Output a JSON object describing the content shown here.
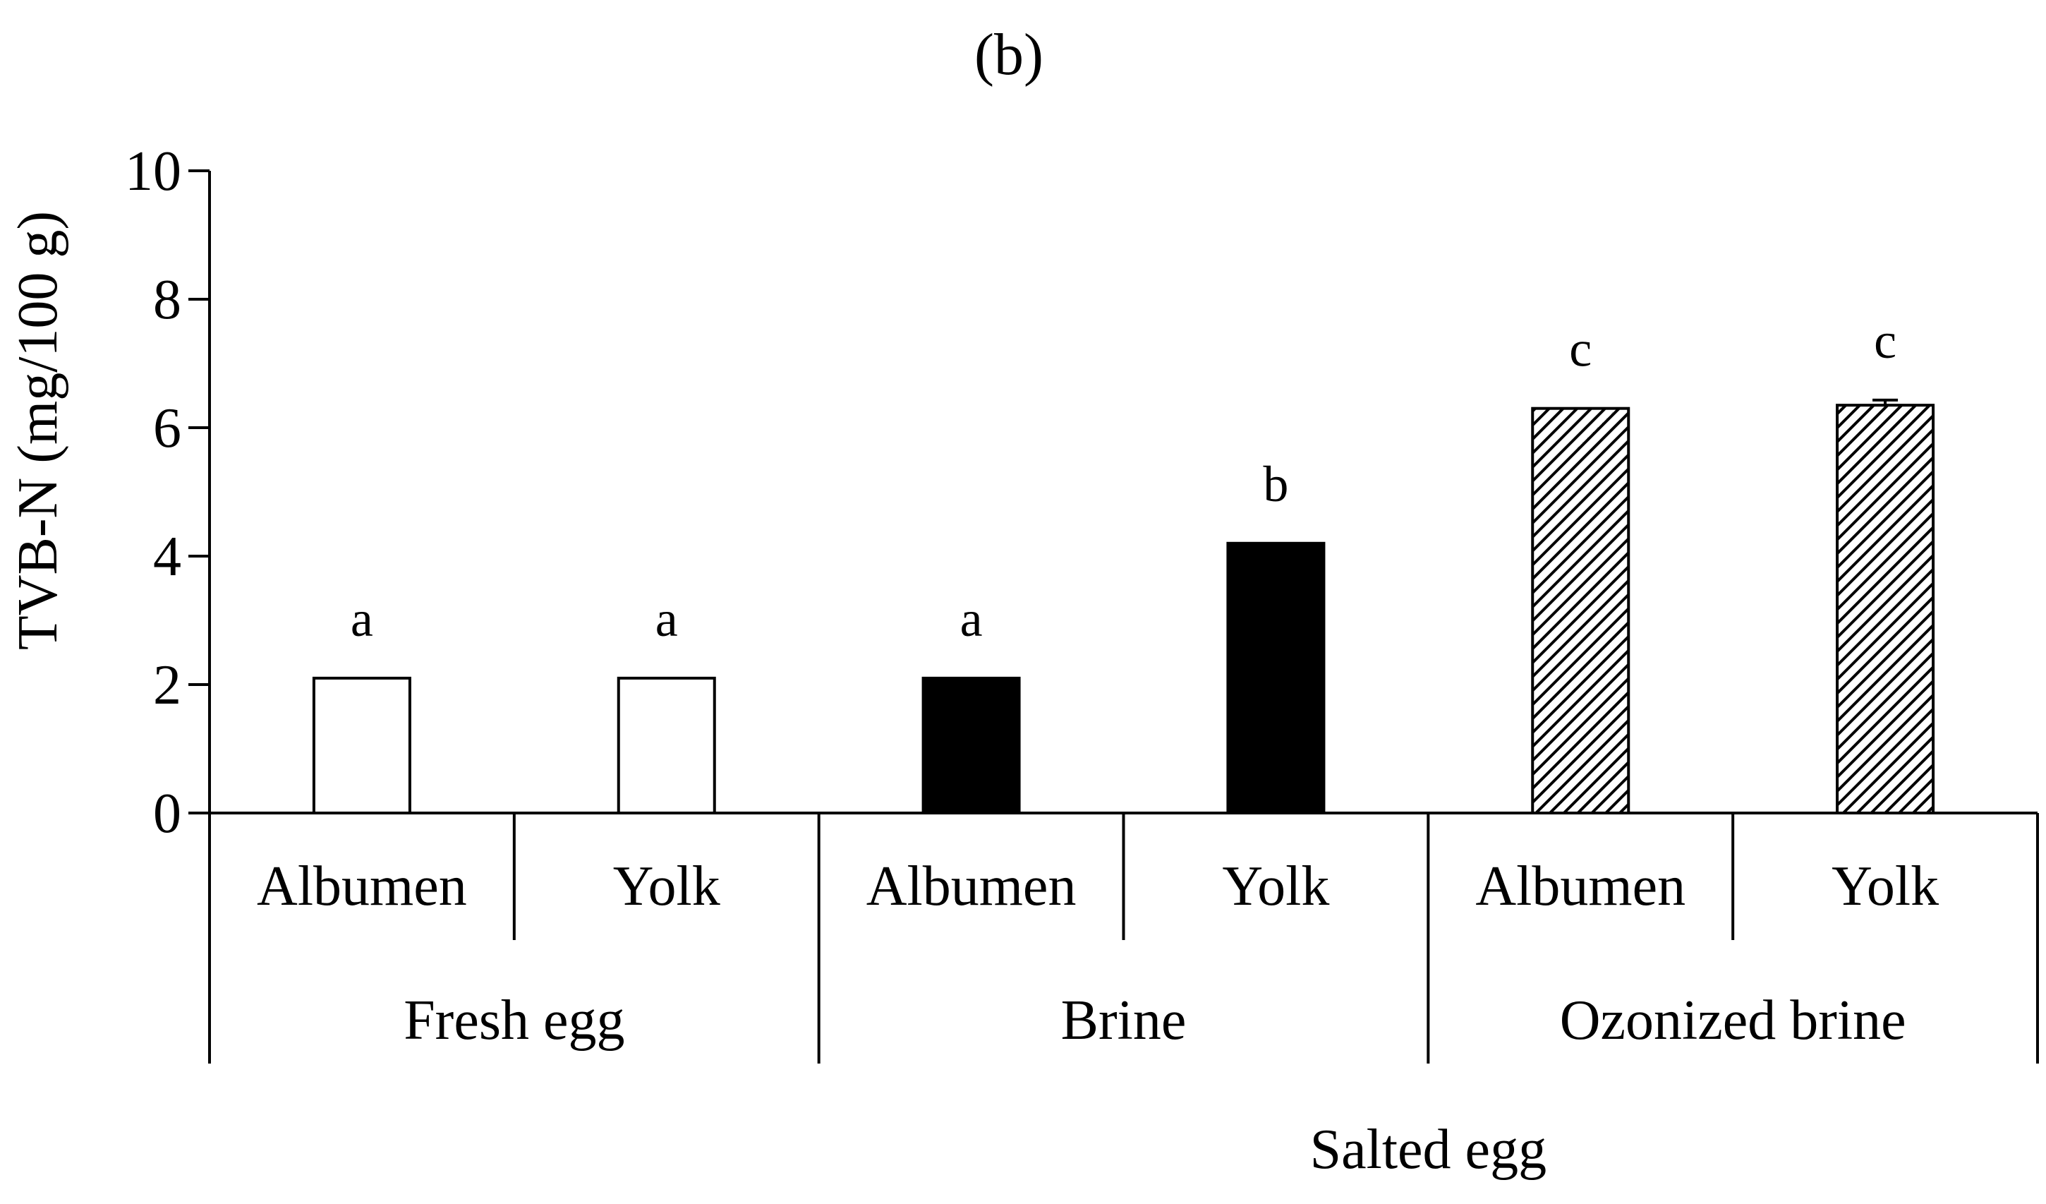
{
  "chart_data": {
    "type": "bar",
    "title": "(b)",
    "xlabel": "",
    "ylabel": "TVB-N (mg/100 g)",
    "ylim": [
      0,
      10
    ],
    "yticks": [
      0,
      2,
      4,
      6,
      8,
      10
    ],
    "grid": false,
    "legend": "none",
    "categories": [
      "Albumen",
      "Yolk",
      "Albumen",
      "Yolk",
      "Albumen",
      "Yolk"
    ],
    "groups": [
      {
        "label": "Fresh egg",
        "span": [
          0,
          1
        ]
      },
      {
        "label": "Brine",
        "span": [
          2,
          3
        ]
      },
      {
        "label": "Ozonized brine",
        "span": [
          4,
          5
        ]
      }
    ],
    "super_group": {
      "label": "Salted egg"
    },
    "values": [
      2.1,
      2.1,
      2.1,
      4.2,
      6.3,
      6.35
    ],
    "errors": [
      0,
      0,
      0,
      0,
      0,
      0.08
    ],
    "significance": [
      "a",
      "a",
      "a",
      "b",
      "c",
      "c"
    ],
    "fills": [
      "white",
      "white",
      "black",
      "black",
      "hatched",
      "hatched"
    ],
    "colors": {
      "axis": "#000000",
      "white_fill": "#ffffff",
      "black_fill": "#000000"
    }
  }
}
